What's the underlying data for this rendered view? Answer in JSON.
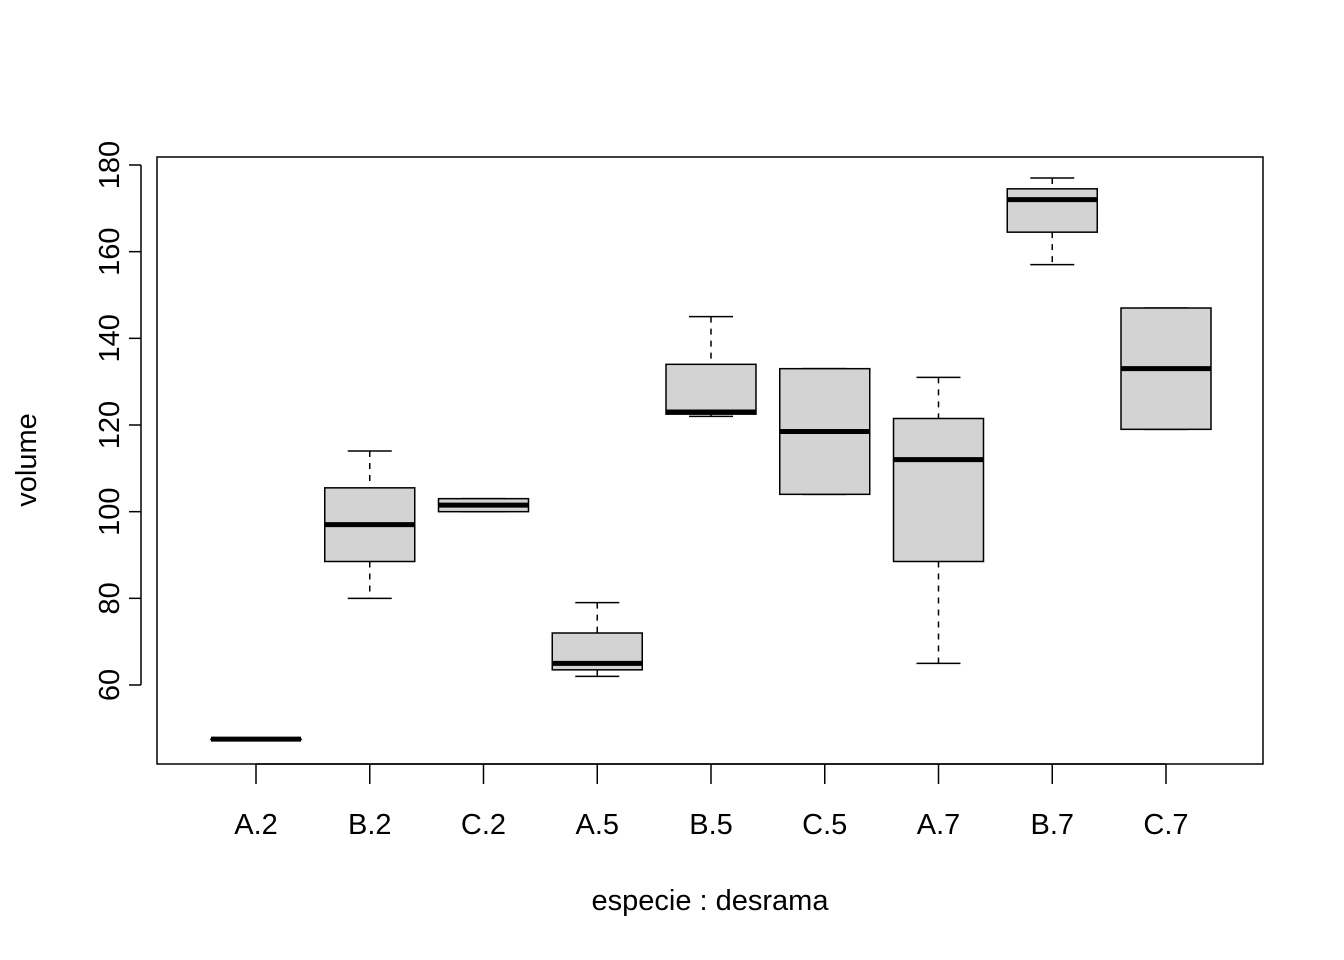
{
  "chart_data": {
    "type": "boxplot",
    "title": "",
    "xlabel": "especie : desrama",
    "ylabel": "volume",
    "ylim": [
      43,
      183
    ],
    "yticks": [
      60,
      80,
      100,
      120,
      140,
      160,
      180
    ],
    "grid": false,
    "legend": "none",
    "box_fill": "#d3d3d3",
    "categories": [
      "A.2",
      "B.2",
      "C.2",
      "A.5",
      "B.5",
      "C.5",
      "A.7",
      "B.7",
      "C.7"
    ],
    "boxes": [
      {
        "category": "A.2",
        "min": 47.5,
        "q1": 47.5,
        "median": 47.5,
        "q3": 47.5,
        "max": 47.5
      },
      {
        "category": "B.2",
        "min": 80,
        "q1": 88.5,
        "median": 97,
        "q3": 105.5,
        "max": 114
      },
      {
        "category": "C.2",
        "min": 100,
        "q1": 100,
        "median": 101.5,
        "q3": 103,
        "max": 103
      },
      {
        "category": "A.5",
        "min": 62,
        "q1": 63.5,
        "median": 65,
        "q3": 72,
        "max": 79
      },
      {
        "category": "B.5",
        "min": 122,
        "q1": 122.5,
        "median": 123,
        "q3": 134,
        "max": 145
      },
      {
        "category": "C.5",
        "min": 104,
        "q1": 104,
        "median": 118.5,
        "q3": 133,
        "max": 133
      },
      {
        "category": "A.7",
        "min": 65,
        "q1": 88.5,
        "median": 112,
        "q3": 121.5,
        "max": 131
      },
      {
        "category": "B.7",
        "min": 157,
        "q1": 164.5,
        "median": 172,
        "q3": 174.5,
        "max": 177
      },
      {
        "category": "C.7",
        "min": 119,
        "q1": 119,
        "median": 133,
        "q3": 147,
        "max": 147
      }
    ]
  }
}
